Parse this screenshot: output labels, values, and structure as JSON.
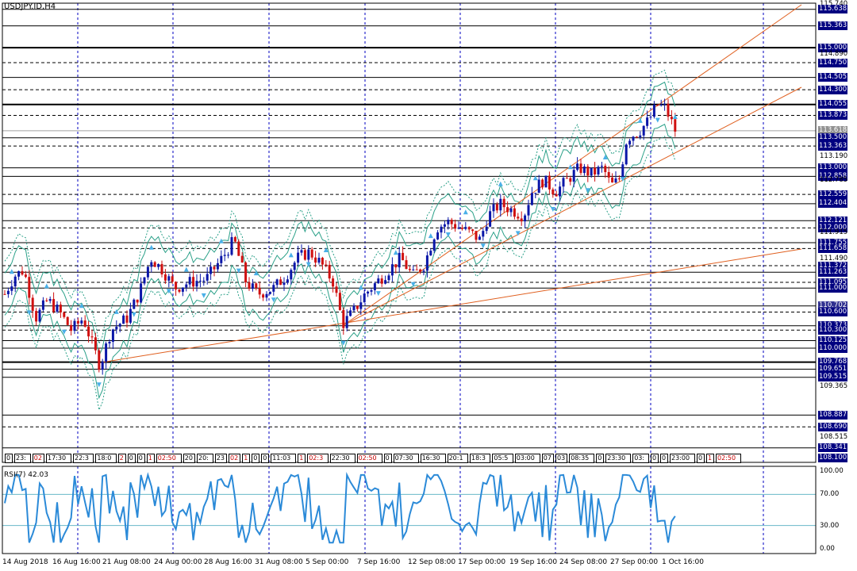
{
  "window": {
    "title": "USDJPY.ID,H4"
  },
  "colors": {
    "bull": "#0a16a8",
    "bear": "#d01010",
    "channel": "#e06020",
    "bands": "#2aa088",
    "rsi": "#2b8ad8",
    "grid": "#0000c0",
    "label_bg": "#000080"
  },
  "price_axis": {
    "top": 115.74,
    "bottom": 108.1,
    "labels": [
      "115.740",
      "115.638",
      "115.363",
      "115.000",
      "114.890",
      "114.750",
      "114.505",
      "114.300",
      "114.055",
      "113.873",
      "113.618",
      "113.500",
      "113.363",
      "113.190",
      "113.000",
      "112.858",
      "112.785",
      "112.559",
      "112.404",
      "112.121",
      "112.000",
      "111.915",
      "111.755",
      "111.658",
      "111.490",
      "111.372",
      "111.263",
      "111.095",
      "111.000",
      "110.702",
      "110.600",
      "110.373",
      "110.300",
      "110.125",
      "110.000",
      "109.768",
      "109.651",
      "109.515",
      "109.365",
      "108.887",
      "108.690",
      "108.515",
      "108.341",
      "108.100"
    ],
    "boxed": [
      "115.638",
      "115.363",
      "115.000",
      "114.750",
      "114.505",
      "114.300",
      "114.055",
      "113.873",
      "113.618",
      "113.500",
      "113.363",
      "113.000",
      "112.858",
      "112.559",
      "112.404",
      "112.121",
      "112.000",
      "111.755",
      "111.658",
      "111.372",
      "111.263",
      "111.095",
      "111.000",
      "110.702",
      "110.600",
      "110.373",
      "110.300",
      "110.125",
      "110.000",
      "109.768",
      "109.651",
      "109.515",
      "108.887",
      "108.690",
      "108.341",
      "108.100"
    ]
  },
  "rsi": {
    "title": "RSI(7) 42.03",
    "axis_labels": [
      "100.00",
      "70.00",
      "30.00",
      "0.00"
    ]
  },
  "time_axis": {
    "labels": [
      "14 Aug 2018",
      "16 Aug 16:00",
      "21 Aug 08:00",
      "24 Aug 00:00",
      "28 Aug 16:00",
      "31 Aug 08:00",
      "5 Sep 00:00",
      "7 Sep 16:00",
      "12 Sep 08:00",
      "17 Sep 00:00",
      "19 Sep 16:00",
      "24 Sep 08:00",
      "27 Sep 00:00",
      "1 Oct 16:00"
    ]
  },
  "tick_markers": [
    "0",
    "23:",
    "02",
    "17:30",
    "22:3",
    "18:0",
    "2",
    "0",
    "0",
    "1",
    "02:50",
    "20",
    "20:",
    "23",
    "02",
    "1",
    "0",
    "0",
    "11:03",
    "1",
    "02:3",
    "22:30",
    "02:50",
    "0",
    "07:30",
    "16:30",
    "20:1",
    "18:3",
    "05:5",
    "03:00",
    "07",
    "03",
    "08:35",
    "0",
    "23:30",
    "03:",
    "0",
    "0",
    "23:00",
    "0",
    "1",
    "02:50"
  ]
}
